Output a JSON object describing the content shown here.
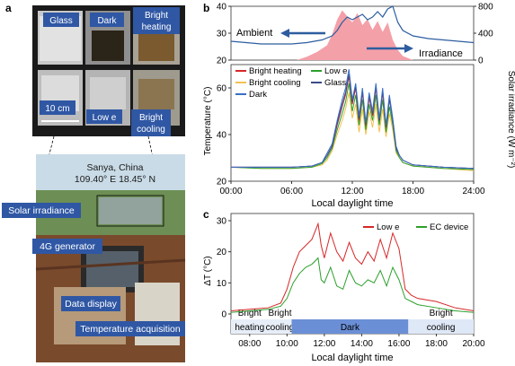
{
  "panel_letters": {
    "a": "a",
    "b": "b",
    "c": "c"
  },
  "photo_labels": {
    "glass": "Glass",
    "dark": "Dark",
    "bright_heating_l1": "Bright",
    "bright_heating_l2": "heating",
    "scale": "10 cm",
    "low_e": "Low e",
    "bright_cooling_l1": "Bright",
    "bright_cooling_l2": "cooling",
    "location_l1": "Sanya, China",
    "location_l2": "109.40° E 18.45° N",
    "solar_irradiance": "Solar irradiance",
    "generator": "4G generator",
    "data_display": "Data display",
    "temperature_acquisition": "Temperature acquisition"
  },
  "colors": {
    "bright_heating": "#d62728",
    "bright_cooling": "#f2c14e",
    "dark": "#3a6fc4",
    "low_e": "#2ca02c",
    "glass": "#3b4a8a",
    "ambient": "#2d5d9f",
    "irradiance": "#f4a0a8",
    "label_box": "#2f57a4"
  },
  "chart_data": [
    {
      "type": "line",
      "panel": "b-top",
      "series": [
        {
          "name": "Ambient",
          "axis": "left",
          "x": [
            "00:00",
            "01:30",
            "03:00",
            "04:30",
            "06:00",
            "07:30",
            "09:00",
            "10:00",
            "10:30",
            "11:00",
            "11:30",
            "12:00",
            "12:30",
            "13:00",
            "13:30",
            "14:00",
            "14:30",
            "15:00",
            "15:30",
            "16:00",
            "16:30",
            "17:00",
            "18:00",
            "19:30",
            "21:00",
            "22:30",
            "24:00"
          ],
          "y": [
            27,
            26.5,
            26,
            26,
            26,
            26.5,
            27.5,
            29,
            31,
            34,
            36,
            35,
            36,
            37,
            35,
            36,
            38,
            36,
            39,
            40,
            34,
            31,
            29,
            28,
            27.5,
            27,
            26.5
          ]
        },
        {
          "name": "Irradiance",
          "axis": "right",
          "x": [
            "00:00",
            "06:30",
            "07:30",
            "08:30",
            "09:30",
            "10:00",
            "10:30",
            "11:00",
            "11:30",
            "12:00",
            "12:30",
            "13:00",
            "13:30",
            "14:00",
            "14:30",
            "15:00",
            "15:30",
            "16:00",
            "16:30",
            "17:00",
            "18:00",
            "24:00"
          ],
          "y": [
            0,
            0,
            50,
            120,
            220,
            380,
            600,
            740,
            650,
            560,
            700,
            520,
            610,
            450,
            580,
            420,
            560,
            300,
            150,
            60,
            0,
            0
          ]
        }
      ],
      "yleft_ticks": [
        "20",
        "30",
        "40"
      ],
      "ylim_left": [
        20,
        40
      ],
      "yright_ticks": [
        "0",
        "400",
        "800"
      ],
      "ylim_right": [
        0,
        800
      ],
      "ylabel_right": "Solar irradiance (W m⁻²)",
      "annotations": [
        "Ambient",
        "Irradiance"
      ]
    },
    {
      "type": "line",
      "panel": "b-bottom",
      "x": [
        "00:00",
        "03:00",
        "06:00",
        "08:00",
        "09:00",
        "09:30",
        "10:00",
        "10:30",
        "11:00",
        "11:20",
        "11:40",
        "12:00",
        "12:20",
        "12:40",
        "13:00",
        "13:20",
        "13:40",
        "14:00",
        "14:20",
        "14:40",
        "15:00",
        "15:20",
        "15:40",
        "16:00",
        "16:20",
        "16:40",
        "17:00",
        "18:00",
        "21:00",
        "24:00"
      ],
      "series": [
        {
          "name": "Bright heating",
          "y": [
            26,
            26,
            26,
            26.5,
            28,
            31,
            35,
            44,
            52,
            57,
            65,
            53,
            60,
            46,
            58,
            44,
            56,
            48,
            60,
            46,
            58,
            43,
            56,
            46,
            34,
            31,
            29,
            27,
            26,
            25.5
          ]
        },
        {
          "name": "Bright cooling",
          "y": [
            26,
            25.5,
            25.5,
            26,
            27,
            29,
            33,
            40,
            46,
            51,
            58,
            47,
            53,
            41,
            51,
            40,
            50,
            43,
            53,
            41,
            51,
            39,
            49,
            42,
            32,
            30,
            28,
            26.5,
            25.5,
            24.5
          ]
        },
        {
          "name": "Dark",
          "y": [
            26,
            26,
            26,
            26.5,
            28,
            32,
            36,
            46,
            55,
            60,
            68,
            55,
            62,
            48,
            60,
            45,
            58,
            50,
            62,
            47,
            60,
            44,
            57,
            47,
            35,
            31,
            29,
            27,
            26,
            25.5
          ]
        },
        {
          "name": "Low e",
          "y": [
            26,
            25.5,
            25.5,
            26,
            27.5,
            30,
            34,
            42,
            49,
            54,
            62,
            50,
            57,
            44,
            55,
            42,
            53,
            46,
            57,
            44,
            55,
            41,
            52,
            44,
            33,
            30,
            28,
            26.5,
            25.5,
            25
          ]
        },
        {
          "name": "Glass",
          "y": [
            26,
            26,
            26,
            26.5,
            28,
            31,
            35,
            45,
            53,
            58,
            66,
            54,
            61,
            47,
            59,
            44,
            57,
            49,
            61,
            46,
            59,
            43,
            55,
            46,
            34,
            31,
            29,
            27,
            26,
            25.5
          ]
        }
      ],
      "ylabel": "Temperature (°C)",
      "yticks": [
        "20",
        "40",
        "60"
      ],
      "ylim": [
        20,
        70
      ],
      "xticks": [
        "00:00",
        "06:00",
        "12:00",
        "18:00",
        "24:00"
      ],
      "xlabel": "Local daylight time"
    },
    {
      "type": "line",
      "panel": "c",
      "x": [
        "07:00",
        "08:00",
        "09:00",
        "09:40",
        "10:00",
        "10:20",
        "10:40",
        "11:00",
        "11:20",
        "11:40",
        "11:50",
        "12:00",
        "12:20",
        "12:40",
        "13:00",
        "13:20",
        "13:40",
        "14:00",
        "14:20",
        "14:40",
        "15:00",
        "15:20",
        "15:40",
        "16:00",
        "16:20",
        "16:40",
        "17:00",
        "18:00",
        "19:00",
        "20:00"
      ],
      "series": [
        {
          "name": "Low e",
          "y": [
            1,
            1.5,
            2,
            3.5,
            8,
            15,
            20,
            22,
            24,
            29,
            22,
            18,
            26,
            20,
            17,
            23,
            18,
            16,
            20,
            17,
            24,
            18,
            26,
            21,
            8,
            6,
            5,
            4,
            2,
            1
          ]
        },
        {
          "name": "EC device",
          "y": [
            0.5,
            1,
            1.5,
            2.5,
            5,
            10,
            13,
            15,
            16,
            18,
            11,
            10,
            15,
            9,
            8,
            14,
            10,
            9,
            11,
            10,
            14,
            9,
            15,
            11,
            5,
            4,
            3,
            2,
            1,
            0.5
          ]
        }
      ],
      "ylabel": "ΔT (°C)",
      "yticks": [
        "0",
        "10",
        "20",
        "30"
      ],
      "ylim": [
        0,
        30
      ],
      "xticks": [
        "08:00",
        "10:00",
        "12:00",
        "14:00",
        "16:00",
        "18:00",
        "20:00"
      ],
      "xlabel": "Local daylight time",
      "state_band": [
        {
          "label_l1": "Bright",
          "label_l2": "heating",
          "from": "07:00",
          "to": "09:00",
          "fill": "#e8eef8"
        },
        {
          "label_l1": "Bright",
          "label_l2": "cooling",
          "from": "09:00",
          "to": "10:15",
          "fill": "#e8eef8"
        },
        {
          "label_l1": "Dark",
          "label_l2": "",
          "from": "10:15",
          "to": "16:30",
          "fill": "#6b8fd6"
        },
        {
          "label_l1": "Bright",
          "label_l2": "cooling",
          "from": "16:30",
          "to": "20:00",
          "fill": "#dfe8f6"
        }
      ]
    }
  ]
}
